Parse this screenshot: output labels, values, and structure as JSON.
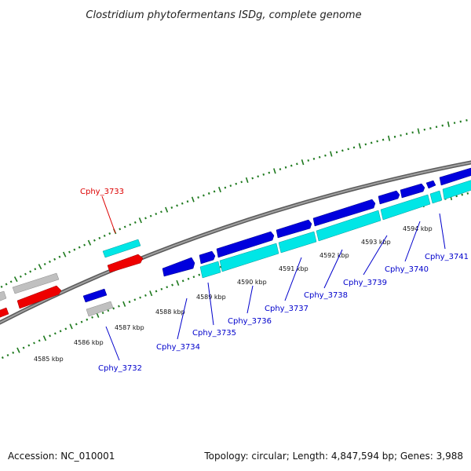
{
  "title": "Clostridium phytofermentans ISDg, complete genome",
  "footer": {
    "accession": "Accession: NC_010001",
    "topology": "Topology: circular; Length: 4,847,594 bp; Genes: 3,988"
  },
  "colors": {
    "backbone": "#808080",
    "tick_green": "#1f7a1f",
    "label_blue": "#0000cc",
    "label_red": "#dd0000",
    "blue_gene": "#0000dd",
    "cyan_gene": "#00e6e6",
    "red_gene": "#ee0000",
    "gray_gene": "#c0c0c0"
  },
  "scale_labels": [
    "4585 kbp",
    "4586 kbp",
    "4587 kbp",
    "4588 kbp",
    "4589 kbp",
    "4590 kbp",
    "4591 kbp",
    "4592 kbp",
    "4593 kbp",
    "4594 kbp"
  ],
  "gene_labels": [
    {
      "text": "Cphy_3732",
      "color": "blue"
    },
    {
      "text": "Cphy_3733",
      "color": "red"
    },
    {
      "text": "Cphy_3734",
      "color": "blue"
    },
    {
      "text": "Cphy_3735",
      "color": "blue"
    },
    {
      "text": "Cphy_3736",
      "color": "blue"
    },
    {
      "text": "Cphy_3737",
      "color": "blue"
    },
    {
      "text": "Cphy_3738",
      "color": "blue"
    },
    {
      "text": "Cphy_3739",
      "color": "blue"
    },
    {
      "text": "Cphy_3740",
      "color": "blue"
    },
    {
      "text": "Cphy_3741",
      "color": "blue"
    }
  ]
}
